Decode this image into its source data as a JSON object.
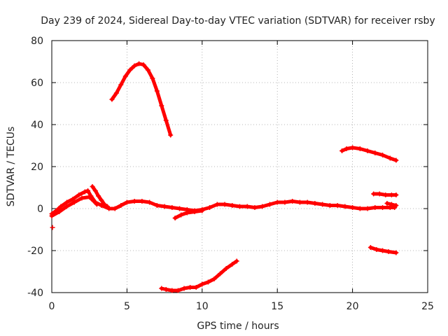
{
  "chart_data": {
    "type": "scatter",
    "title": "Day 239 of 2024, Sidereal Day-to-day VTEC variation (SDTVAR) for receiver rsby",
    "xlabel": "GPS time / hours",
    "ylabel": "SDTVAR / TECUs",
    "xlim": [
      0,
      25
    ],
    "ylim": [
      -40,
      80
    ],
    "xticks": [
      0,
      5,
      10,
      15,
      20,
      25
    ],
    "yticks": [
      -40,
      -20,
      0,
      20,
      40,
      60,
      80
    ],
    "grid": true,
    "marker": "+",
    "color": "#ff0000",
    "series": [
      {
        "name": "main-trace",
        "points": [
          [
            0.0,
            -2.5
          ],
          [
            0.3,
            -1.0
          ],
          [
            0.6,
            1.0
          ],
          [
            1.0,
            3.0
          ],
          [
            1.4,
            4.5
          ],
          [
            1.8,
            6.5
          ],
          [
            2.2,
            8.0
          ],
          [
            2.4,
            8.5
          ],
          [
            2.6,
            6.0
          ],
          [
            2.9,
            3.0
          ],
          [
            3.3,
            1.5
          ],
          [
            3.8,
            0.0
          ],
          [
            4.2,
            0.0
          ],
          [
            4.6,
            1.5
          ],
          [
            5.0,
            3.0
          ],
          [
            5.5,
            3.5
          ],
          [
            6.0,
            3.5
          ],
          [
            6.5,
            3.0
          ],
          [
            7.0,
            1.5
          ],
          [
            7.5,
            1.0
          ],
          [
            8.0,
            0.5
          ],
          [
            8.5,
            0.0
          ],
          [
            9.0,
            -0.5
          ],
          [
            9.5,
            -1.0
          ],
          [
            10.0,
            -0.5
          ],
          [
            10.5,
            0.5
          ],
          [
            11.0,
            2.0
          ],
          [
            11.5,
            2.0
          ],
          [
            12.0,
            1.5
          ],
          [
            12.5,
            1.0
          ],
          [
            13.0,
            1.0
          ],
          [
            13.5,
            0.5
          ],
          [
            14.0,
            1.0
          ],
          [
            14.5,
            2.0
          ],
          [
            15.0,
            3.0
          ],
          [
            15.5,
            3.0
          ],
          [
            16.0,
            3.5
          ],
          [
            16.5,
            3.0
          ],
          [
            17.0,
            3.0
          ],
          [
            17.5,
            2.5
          ],
          [
            18.0,
            2.0
          ],
          [
            18.5,
            1.5
          ],
          [
            19.0,
            1.5
          ],
          [
            19.5,
            1.0
          ],
          [
            20.0,
            0.5
          ],
          [
            20.5,
            0.0
          ],
          [
            21.0,
            0.0
          ],
          [
            21.5,
            0.5
          ],
          [
            22.0,
            0.5
          ],
          [
            22.5,
            0.5
          ],
          [
            22.8,
            0.5
          ]
        ]
      },
      {
        "name": "lower-start-band",
        "points": [
          [
            0.0,
            -3.5
          ],
          [
            0.5,
            -1.5
          ],
          [
            1.0,
            1.0
          ],
          [
            1.5,
            3.0
          ],
          [
            2.0,
            5.0
          ],
          [
            2.5,
            5.5
          ],
          [
            2.8,
            3.5
          ],
          [
            3.0,
            2.0
          ]
        ]
      },
      {
        "name": "early-spike",
        "points": [
          [
            2.7,
            10.5
          ],
          [
            2.9,
            8.5
          ],
          [
            3.1,
            6.0
          ],
          [
            3.3,
            4.0
          ],
          [
            3.5,
            2.0
          ],
          [
            3.7,
            1.0
          ]
        ]
      },
      {
        "name": "isolated-point",
        "points": [
          [
            0.05,
            -9.0
          ]
        ]
      },
      {
        "name": "high-arc",
        "points": [
          [
            4.0,
            52.0
          ],
          [
            4.3,
            55.0
          ],
          [
            4.6,
            59.0
          ],
          [
            4.9,
            63.0
          ],
          [
            5.2,
            66.0
          ],
          [
            5.5,
            68.0
          ],
          [
            5.8,
            69.0
          ],
          [
            6.1,
            68.5
          ],
          [
            6.4,
            66.0
          ],
          [
            6.7,
            62.0
          ],
          [
            7.0,
            56.0
          ],
          [
            7.3,
            49.0
          ],
          [
            7.6,
            42.0
          ],
          [
            7.9,
            35.0
          ]
        ]
      },
      {
        "name": "low-segment",
        "points": [
          [
            7.3,
            -38.0
          ],
          [
            7.6,
            -38.5
          ],
          [
            8.0,
            -39.0
          ],
          [
            8.4,
            -39.0
          ],
          [
            8.8,
            -38.0
          ],
          [
            9.2,
            -37.5
          ],
          [
            9.6,
            -37.5
          ],
          [
            10.0,
            -36.0
          ],
          [
            10.4,
            -35.0
          ],
          [
            10.8,
            -33.5
          ],
          [
            11.2,
            -31.0
          ],
          [
            11.6,
            -28.5
          ],
          [
            12.0,
            -26.5
          ],
          [
            12.3,
            -25.0
          ]
        ]
      },
      {
        "name": "dip-segment",
        "points": [
          [
            8.2,
            -4.5
          ],
          [
            8.6,
            -3.0
          ],
          [
            9.0,
            -2.0
          ],
          [
            9.5,
            -1.5
          ],
          [
            10.0,
            -1.0
          ]
        ]
      },
      {
        "name": "upper-right",
        "points": [
          [
            19.3,
            27.5
          ],
          [
            19.6,
            28.5
          ],
          [
            20.0,
            29.0
          ],
          [
            20.5,
            28.5
          ],
          [
            21.0,
            27.5
          ],
          [
            21.5,
            26.5
          ],
          [
            22.0,
            25.5
          ],
          [
            22.5,
            24.0
          ],
          [
            22.9,
            23.0
          ]
        ]
      },
      {
        "name": "right-seven",
        "points": [
          [
            21.4,
            7.0
          ],
          [
            21.8,
            7.0
          ],
          [
            22.2,
            6.5
          ],
          [
            22.6,
            6.5
          ],
          [
            22.9,
            6.5
          ]
        ]
      },
      {
        "name": "right-small",
        "points": [
          [
            22.3,
            2.5
          ],
          [
            22.6,
            2.0
          ],
          [
            22.9,
            1.5
          ]
        ]
      },
      {
        "name": "lower-right",
        "points": [
          [
            21.2,
            -18.5
          ],
          [
            21.6,
            -19.5
          ],
          [
            22.0,
            -20.0
          ],
          [
            22.4,
            -20.5
          ],
          [
            22.9,
            -21.0
          ]
        ]
      }
    ]
  }
}
